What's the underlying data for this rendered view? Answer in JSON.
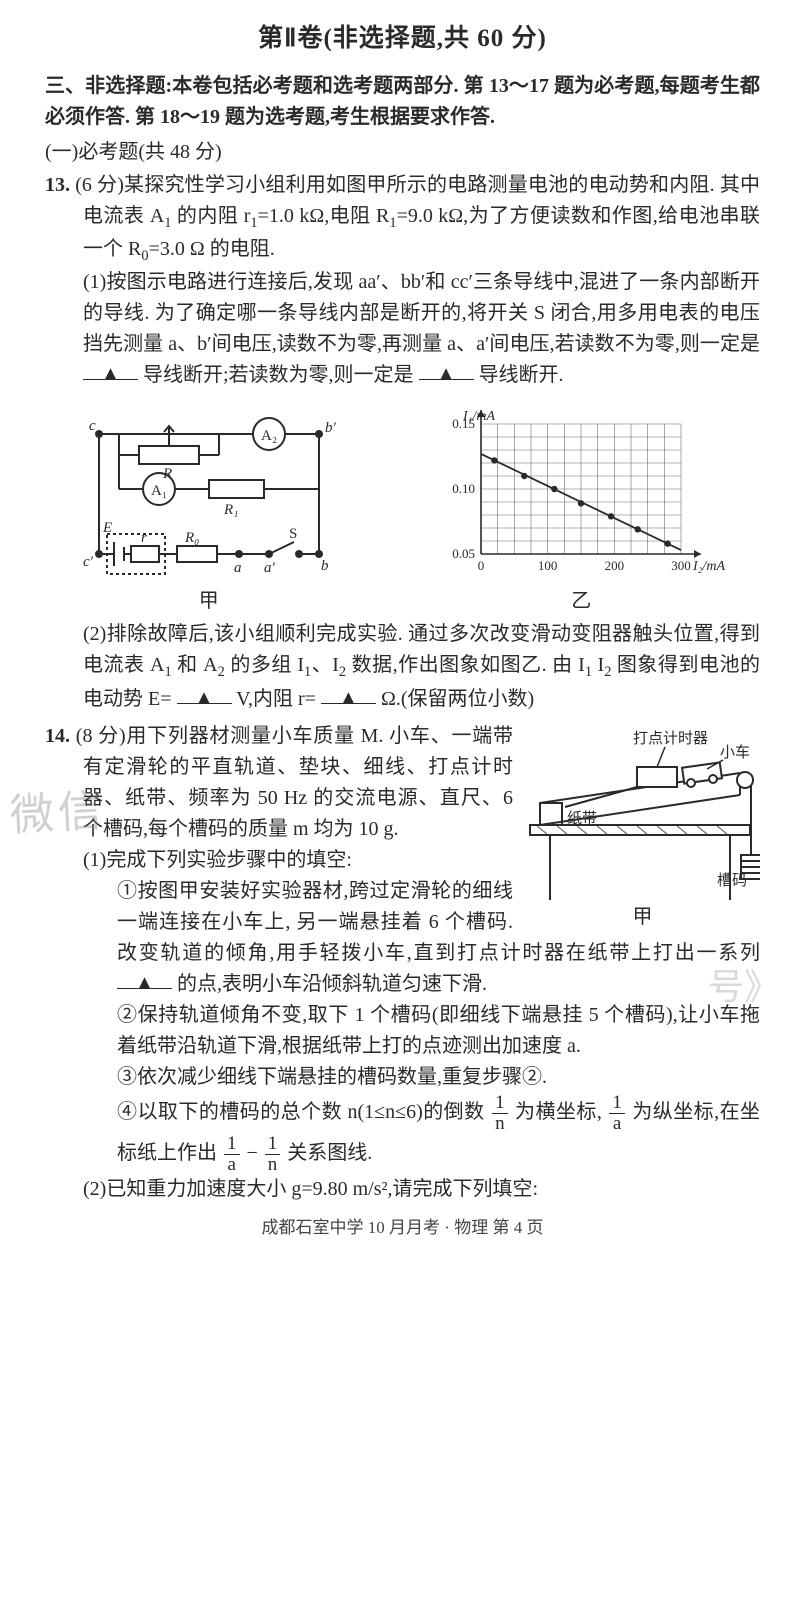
{
  "header": {
    "section_title": "第Ⅱ卷(非选择题,共 60 分)"
  },
  "instructions": {
    "main": "三、非选择题:本卷包括必考题和选考题两部分. 第 13～17 题为必考题,每题考生都必须作答. 第 18～19 题为选考题,考生根据要求作答.",
    "sub": "(一)必考题(共 48 分)"
  },
  "q13": {
    "num": "13.",
    "points": "(6 分)",
    "stem_a": "某探究性学习小组利用如图甲所示的电路测量电池的电动势和内阻. 其中电流表 A",
    "stem_b": " 的内阻 r",
    "stem_c": "=1.0 kΩ,电阻 R",
    "stem_d": "=9.0 kΩ,为了方便读数和作图,给电池串联一个 R",
    "stem_e": "=3.0 Ω 的电阻.",
    "p1_a": "(1)按图示电路进行连接后,发现 aa′、bb′和 cc′三条导线中,混进了一条内部断开的导线. 为了确定哪一条导线内部是断开的,将开关 S 闭合,用多用电表的电压挡先测量 a、b′间电压,读数不为零,再测量 a、a′间电压,若读数不为零,则一定是",
    "p1_b": "导线断开;若读数为零,则一定是",
    "p1_c": "导线断开.",
    "p2_a": "(2)排除故障后,该小组顺利完成实验. 通过多次改变滑动变阻器触头位置,得到电流表 A",
    "p2_b": " 和 A",
    "p2_c": " 的多组 I",
    "p2_d": "、I",
    "p2_e": " 数据,作出图象如图乙. 由 I",
    "p2_f": "   I",
    "p2_g": " 图象得到电池的电动势 E=",
    "p2_h": "V,内阻 r=",
    "p2_i": "Ω.(保留两位小数)",
    "caption_left": "甲",
    "caption_right": "乙",
    "chart": {
      "type": "line",
      "x_label": "I₂/mA",
      "y_label": "I₁/mA",
      "xlim": [
        0,
        300
      ],
      "ylim": [
        0.05,
        0.15
      ],
      "xticks": [
        0,
        100,
        200,
        300
      ],
      "yticks": [
        0.05,
        0.1,
        0.15
      ],
      "grid_divs_x": 12,
      "grid_divs_y": 10,
      "points_x": [
        20,
        65,
        110,
        150,
        195,
        235,
        280
      ],
      "points_y": [
        0.122,
        0.11,
        0.1,
        0.089,
        0.079,
        0.069,
        0.058
      ],
      "line_start": [
        0,
        0.127
      ],
      "line_end": [
        300,
        0.053
      ],
      "axis_color": "#2a2a2a",
      "grid_color": "#6d6d6d",
      "point_color": "#2a2a2a",
      "line_color": "#2a2a2a",
      "bg": "#ffffff"
    },
    "circuit": {
      "labels": {
        "c": "c",
        "bprime": "b′",
        "R": "R",
        "A2": "A₂",
        "A1": "A₁",
        "R1": "R₁",
        "E": "E",
        "r": "r",
        "R0": "R₀",
        "cprime": "c′",
        "a": "a",
        "aprime": "a′",
        "b": "b",
        "S": "S"
      },
      "stroke": "#2a2a2a",
      "bg": "#ffffff"
    }
  },
  "q14": {
    "num": "14.",
    "points": "(8 分)",
    "stem": "用下列器材测量小车质量 M. 小车、一端带有定滑轮的平直轨道、垫块、细线、打点计时器、纸带、频率为 50 Hz 的交流电源、直尺、6 个槽码,每个槽码的质量 m 均为 10 g.",
    "fig_labels": {
      "timer": "打点计时器",
      "cart": "小车",
      "tape": "纸带",
      "weights": "槽码",
      "caption": "甲"
    },
    "fig_colors": {
      "stroke": "#2a2a2a",
      "hatch": "#555555",
      "bg": "#ffffff"
    },
    "p1": "(1)完成下列实验步骤中的填空:",
    "s1_a": "①按图甲安装好实验器材,跨过定滑轮的细线一端连接在小车上, 另一端悬挂着 6 个槽码. 改变轨道的倾角,用手轻拨小车,直到打点计时器在纸带上打出一系列",
    "s1_b": "的点,表明小车沿倾斜轨道匀速下滑.",
    "s2": "②保持轨道倾角不变,取下 1 个槽码(即细线下端悬挂 5 个槽码),让小车拖着纸带沿轨道下滑,根据纸带上打的点迹测出加速度 a.",
    "s3": "③依次减少细线下端悬挂的槽码数量,重复步骤②.",
    "s4_a": "④以取下的槽码的总个数 n(1≤n≤6)的倒数",
    "s4_b": "为横坐标,",
    "s4_c": "为纵坐标,在坐标纸上作出",
    "s4_d": "关系图线.",
    "p2": "(2)已知重力加速度大小 g=9.80 m/s²,请完成下列填空:",
    "frac_1n_num": "1",
    "frac_1n_den": "n",
    "frac_1a_num": "1",
    "frac_1a_den": "a"
  },
  "footer": "成都石室中学 10 月月考 · 物理 第 4 页",
  "watermark": "微信",
  "watermark2": "号》",
  "triangle": "▲"
}
